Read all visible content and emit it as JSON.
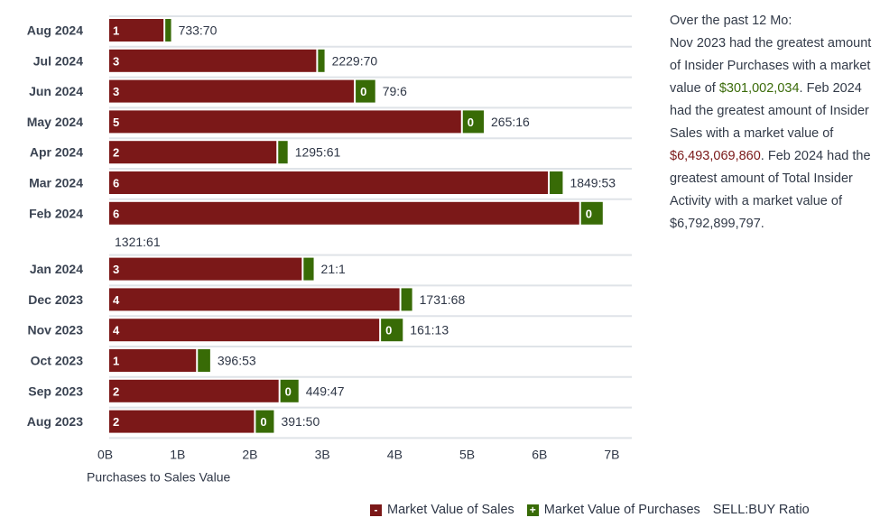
{
  "chart_data": {
    "type": "bar",
    "orientation": "horizontal",
    "stacked": true,
    "title": "",
    "xlabel": "Purchases to Sales Value",
    "ylabel": "",
    "xlim": [
      0,
      7.2
    ],
    "x_unit": "B",
    "x_ticks": [
      "0B",
      "1B",
      "2B",
      "3B",
      "4B",
      "5B",
      "6B",
      "7B"
    ],
    "x_tick_values": [
      0,
      1,
      2,
      3,
      4,
      5,
      6,
      7
    ],
    "grid": true,
    "legend_position": "bottom-right",
    "categories": [
      "Aug 2024",
      "Jul 2024",
      "Jun 2024",
      "May 2024",
      "Apr 2024",
      "Mar 2024",
      "Feb 2024",
      "Jan 2024",
      "Dec 2023",
      "Nov 2023",
      "Oct 2023",
      "Sep 2023",
      "Aug 2023"
    ],
    "series": [
      {
        "name": "Market Value of Sales",
        "color": "#7b1818",
        "values": [
          0.75,
          2.86,
          3.38,
          4.86,
          2.31,
          6.06,
          6.493,
          2.66,
          4.01,
          3.73,
          1.2,
          2.34,
          2.0
        ],
        "counts": [
          "1",
          "3",
          "3",
          "5",
          "2",
          "6",
          "6",
          "3",
          "4",
          "4",
          "1",
          "2",
          "2"
        ]
      },
      {
        "name": "Market Value of Purchases",
        "color": "#386b06",
        "values": [
          0.08,
          0.09,
          0.27,
          0.29,
          0.13,
          0.18,
          0.3,
          0.14,
          0.15,
          0.301,
          0.17,
          0.25,
          0.25
        ],
        "counts": [
          "",
          "",
          "0",
          "0",
          "",
          "",
          "0",
          "",
          "",
          "0",
          "",
          "0",
          "0"
        ]
      }
    ],
    "ratio_label": "SELL:BUY Ratio",
    "ratios": [
      "733:70",
      "2229:70",
      "79:6",
      "265:16",
      "1295:61",
      "1849:53",
      "1321:61",
      "21:1",
      "1731:68",
      "161:13",
      "396:53",
      "449:47",
      "391:50"
    ]
  },
  "summary": {
    "intro": "Over the past 12 Mo:",
    "p1": "Nov 2023 had the greatest amount of Insider Purchases with a market value of",
    "purchase_value": "$301,002,034",
    "p2": ". Feb 2024 had the greatest amount of Insider Sales with a market value of",
    "sales_value": "$6,493,069,860",
    "p3": ". Feb 2024 had the greatest amount of Total Insider Activity with a market value of $6,792,899,797."
  },
  "legend": {
    "sales_label": "Market Value of Sales",
    "sales_symbol": "-",
    "purchases_label": "Market Value of Purchases",
    "purchases_symbol": "+",
    "ratio_label": "SELL:BUY Ratio",
    "sales_color": "#7b1818",
    "purchases_color": "#386b06"
  }
}
